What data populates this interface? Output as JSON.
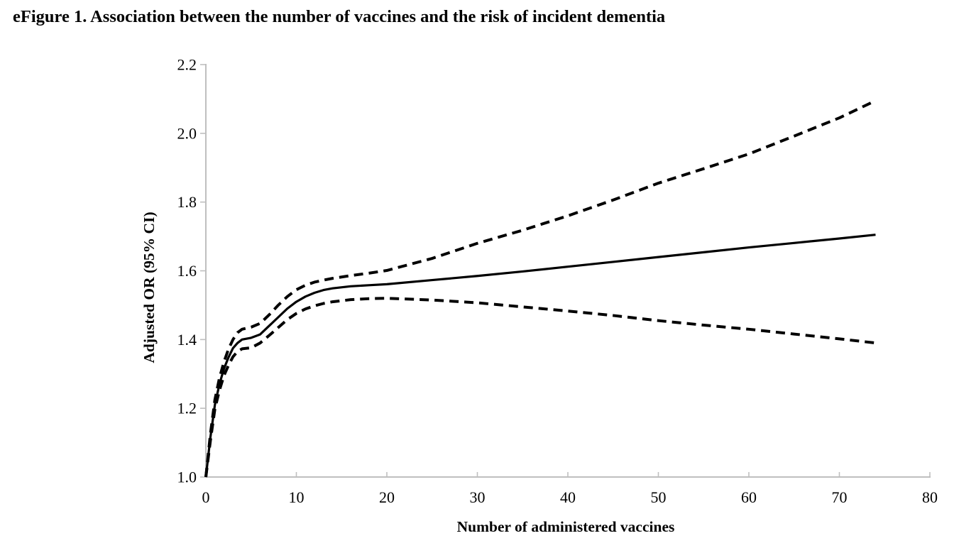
{
  "figure": {
    "title": "eFigure 1. Association between the number of vaccines and the risk of incident dementia"
  },
  "chart_data": {
    "type": "line",
    "title": "eFigure 1. Association between the number of vaccines and the risk of incident dementia",
    "xlabel": "Number of administered vaccines",
    "ylabel": "Adjusted OR (95% CI)",
    "xlim": [
      0,
      80
    ],
    "ylim": [
      1.0,
      2.2
    ],
    "x_ticks": [
      0,
      10,
      20,
      30,
      40,
      50,
      60,
      70,
      80
    ],
    "y_ticks": [
      1.0,
      1.2,
      1.4,
      1.6,
      1.8,
      2.0,
      2.2
    ],
    "grid": false,
    "legend_position": "none",
    "axis_color": "#bfbfbf",
    "line_color": "#000000",
    "x": [
      0,
      0.5,
      1,
      1.5,
      2,
      2.5,
      3,
      3.5,
      4,
      5,
      6,
      7,
      8,
      9,
      10,
      11,
      12,
      13,
      14,
      16,
      18,
      20,
      25,
      30,
      35,
      40,
      45,
      50,
      55,
      60,
      65,
      70,
      74
    ],
    "series": [
      {
        "name": "Adjusted OR (point estimate)",
        "style": "solid",
        "values": [
          1.0,
          1.115,
          1.21,
          1.27,
          1.315,
          1.348,
          1.375,
          1.39,
          1.4,
          1.405,
          1.415,
          1.44,
          1.465,
          1.49,
          1.51,
          1.525,
          1.536,
          1.544,
          1.549,
          1.555,
          1.558,
          1.561,
          1.573,
          1.585,
          1.598,
          1.612,
          1.626,
          1.64,
          1.654,
          1.668,
          1.681,
          1.694,
          1.705
        ]
      },
      {
        "name": "Upper 95% CI",
        "style": "dashed",
        "values": [
          1.0,
          1.125,
          1.225,
          1.288,
          1.335,
          1.372,
          1.4,
          1.42,
          1.43,
          1.436,
          1.447,
          1.472,
          1.5,
          1.525,
          1.545,
          1.558,
          1.567,
          1.573,
          1.578,
          1.586,
          1.593,
          1.601,
          1.636,
          1.68,
          1.718,
          1.76,
          1.806,
          1.855,
          1.897,
          1.94,
          1.992,
          2.045,
          2.095
        ]
      },
      {
        "name": "Lower 95% CI",
        "style": "dashed",
        "values": [
          1.0,
          1.105,
          1.198,
          1.252,
          1.295,
          1.325,
          1.35,
          1.365,
          1.373,
          1.376,
          1.39,
          1.412,
          1.435,
          1.458,
          1.476,
          1.489,
          1.498,
          1.505,
          1.51,
          1.516,
          1.519,
          1.52,
          1.515,
          1.507,
          1.495,
          1.483,
          1.47,
          1.455,
          1.442,
          1.43,
          1.416,
          1.402,
          1.39
        ]
      }
    ]
  }
}
